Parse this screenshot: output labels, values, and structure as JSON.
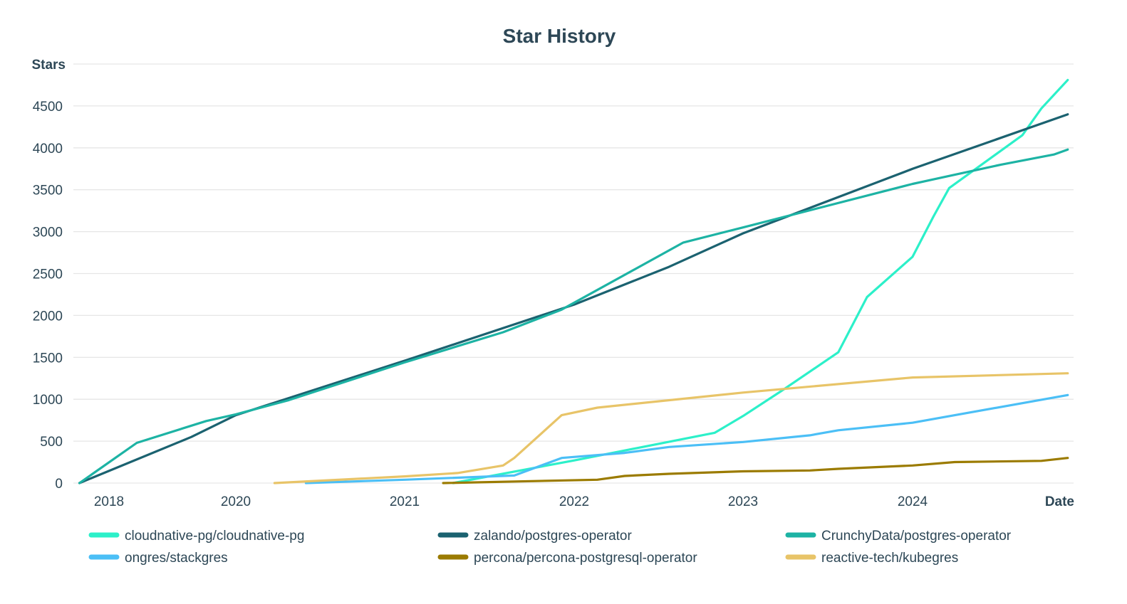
{
  "chart_data": {
    "type": "line",
    "title": "Star History",
    "xlabel": "Date",
    "ylabel": "Stars",
    "ylim": [
      0,
      5000
    ],
    "yticks": [
      0,
      500,
      1000,
      1500,
      2000,
      2500,
      3000,
      3500,
      4000,
      4500
    ],
    "xticks": [
      {
        "label": "2018",
        "date": "2018-01-01"
      },
      {
        "label": "2020",
        "date": "2020-01-01"
      },
      {
        "label": "2021",
        "date": "2021-01-01"
      },
      {
        "label": "2022",
        "date": "2022-01-01"
      },
      {
        "label": "2023",
        "date": "2023-01-01"
      },
      {
        "label": "2024",
        "date": "2024-01-01"
      }
    ],
    "grid": true,
    "legend_position": "bottom",
    "series": [
      {
        "name": "cloudnative-pg/cloudnative-pg",
        "color": "#2cf0c9",
        "points": [
          [
            "2021-04-15",
            0
          ],
          [
            "2022-01-01",
            270
          ],
          [
            "2022-11-01",
            600
          ],
          [
            "2023-01-01",
            800
          ],
          [
            "2023-03-25",
            1100
          ],
          [
            "2023-07-25",
            1560
          ],
          [
            "2023-09-25",
            2220
          ],
          [
            "2024-01-01",
            2700
          ],
          [
            "2024-02-15",
            3180
          ],
          [
            "2024-03-20",
            3520
          ],
          [
            "2024-08-25",
            4150
          ],
          [
            "2024-10-05",
            4470
          ],
          [
            "2024-12-01",
            4810
          ]
        ]
      },
      {
        "name": "zalando/postgres-operator",
        "color": "#1b6270",
        "points": [
          [
            "2017-07-15",
            0
          ],
          [
            "2019-04-20",
            550
          ],
          [
            "2020-01-01",
            810
          ],
          [
            "2021-01-01",
            1460
          ],
          [
            "2022-01-01",
            2130
          ],
          [
            "2022-07-25",
            2580
          ],
          [
            "2023-01-01",
            2980
          ],
          [
            "2024-01-01",
            3750
          ],
          [
            "2024-12-01",
            4400
          ]
        ]
      },
      {
        "name": "CrunchyData/postgres-operator",
        "color": "#1db3a4",
        "points": [
          [
            "2017-07-15",
            0
          ],
          [
            "2018-06-10",
            480
          ],
          [
            "2019-07-15",
            740
          ],
          [
            "2020-01-01",
            820
          ],
          [
            "2020-04-25",
            990
          ],
          [
            "2021-01-01",
            1440
          ],
          [
            "2021-08-01",
            1800
          ],
          [
            "2021-12-05",
            2070
          ],
          [
            "2022-08-25",
            2870
          ],
          [
            "2023-01-01",
            3050
          ],
          [
            "2024-01-01",
            3570
          ],
          [
            "2024-07-10",
            3800
          ],
          [
            "2024-11-01",
            3920
          ],
          [
            "2024-12-01",
            3980
          ]
        ]
      },
      {
        "name": "ongres/stackgres",
        "color": "#4bbff6",
        "points": [
          [
            "2020-06-01",
            0
          ],
          [
            "2021-01-01",
            40
          ],
          [
            "2021-08-25",
            90
          ],
          [
            "2021-12-05",
            300
          ],
          [
            "2022-04-20",
            360
          ],
          [
            "2022-07-25",
            430
          ],
          [
            "2023-01-01",
            490
          ],
          [
            "2023-05-25",
            570
          ],
          [
            "2023-07-25",
            630
          ],
          [
            "2024-01-01",
            720
          ],
          [
            "2024-12-01",
            1050
          ]
        ]
      },
      {
        "name": "percona/percona-postgresql-operator",
        "color": "#9b7b00",
        "points": [
          [
            "2021-03-25",
            0
          ],
          [
            "2022-02-20",
            40
          ],
          [
            "2022-04-20",
            85
          ],
          [
            "2022-07-25",
            110
          ],
          [
            "2023-01-01",
            140
          ],
          [
            "2023-05-25",
            150
          ],
          [
            "2023-07-25",
            170
          ],
          [
            "2024-01-01",
            210
          ],
          [
            "2024-04-01",
            250
          ],
          [
            "2024-10-05",
            265
          ],
          [
            "2024-12-01",
            300
          ]
        ]
      },
      {
        "name": "reactive-tech/kubegres",
        "color": "#e8c468",
        "points": [
          [
            "2020-03-25",
            0
          ],
          [
            "2021-01-01",
            80
          ],
          [
            "2021-04-25",
            120
          ],
          [
            "2021-08-01",
            210
          ],
          [
            "2021-08-25",
            300
          ],
          [
            "2021-12-05",
            810
          ],
          [
            "2022-02-20",
            900
          ],
          [
            "2023-01-01",
            1080
          ],
          [
            "2024-01-01",
            1260
          ],
          [
            "2024-12-01",
            1310
          ]
        ]
      }
    ]
  }
}
